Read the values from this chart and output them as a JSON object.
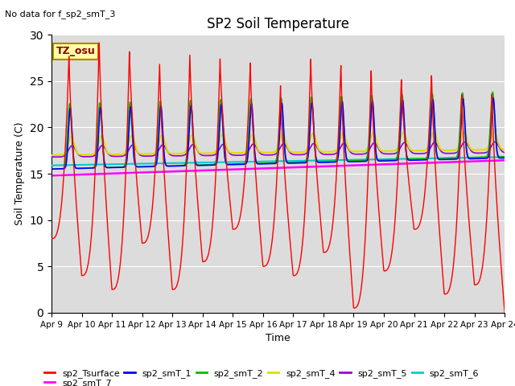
{
  "title": "SP2 Soil Temperature",
  "no_data_text": "No data for f_sp2_smT_3",
  "tz_label": "TZ_osu",
  "ylabel": "Soil Temperature (C)",
  "xlabel": "Time",
  "ylim": [
    0,
    30
  ],
  "yticks": [
    0,
    5,
    10,
    15,
    20,
    25,
    30
  ],
  "xtick_labels": [
    "Apr 9",
    "Apr 10",
    "Apr 11",
    "Apr 12",
    "Apr 13",
    "Apr 14",
    "Apr 15",
    "Apr 16",
    "Apr 17",
    "Apr 18",
    "Apr 19",
    "Apr 20",
    "Apr 21",
    "Apr 22",
    "Apr 23",
    "Apr 24"
  ],
  "series_colors": {
    "sp2_Tsurface": "#ff0000",
    "sp2_smT_1": "#0000ff",
    "sp2_smT_2": "#00bb00",
    "sp2_smT_4": "#dddd00",
    "sp2_smT_5": "#9900cc",
    "sp2_smT_6": "#00cccc",
    "sp2_smT_7": "#ff00ff"
  },
  "bg_color": "#dcdcdc",
  "fig_bg": "#ffffff"
}
